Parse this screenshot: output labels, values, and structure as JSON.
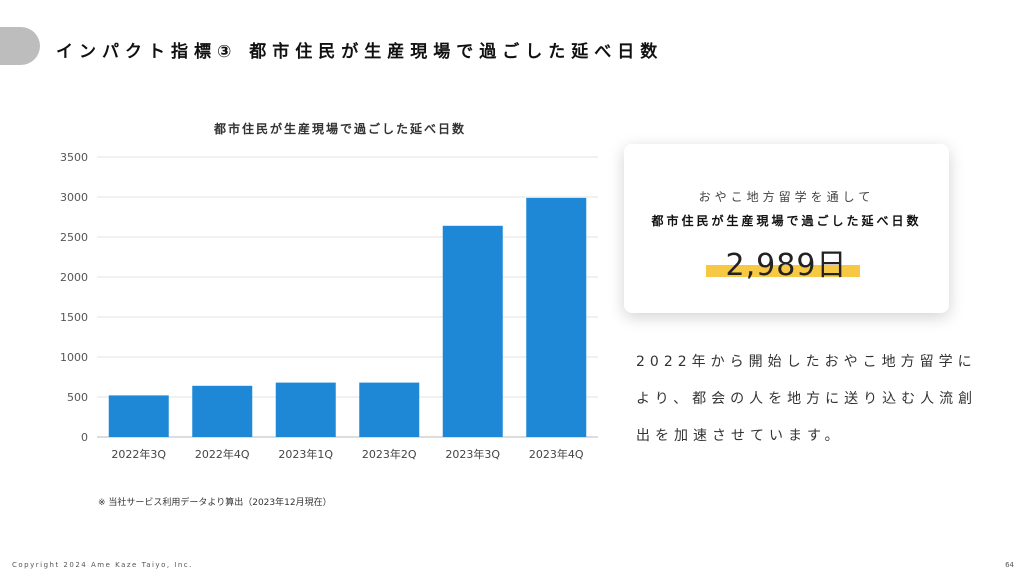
{
  "header": {
    "title": "インパクト指標③ 都市住民が生産現場で過ごした延べ日数"
  },
  "chart_data": {
    "type": "bar",
    "title": "都市住民が生産現場で過ごした延べ日数",
    "categories": [
      "2022年3Q",
      "2022年4Q",
      "2023年1Q",
      "2023年2Q",
      "2023年3Q",
      "2023年4Q"
    ],
    "values": [
      520,
      640,
      680,
      680,
      2640,
      2989
    ],
    "ylim": [
      0,
      3500
    ],
    "yticks": [
      0,
      500,
      1000,
      1500,
      2000,
      2500,
      3000,
      3500
    ],
    "grid": true,
    "bar_color": "#1e88d6"
  },
  "chart_note": "※ 当社サービス利用データより算出（2023年12月現在）",
  "summary_card": {
    "line1": "おやこ地方留学を通して",
    "line2": "都市住民が生産現場で過ごした延べ日数",
    "value": "2,989日",
    "highlight_color": "#f7c843"
  },
  "description": "2022年から開始したおやこ地方留学により、都会の人を地方に送り込む人流創出を加速させています。",
  "footer": {
    "copyright": "Copyright 2024 Ame Kaze Taiyo, Inc.",
    "page": "64"
  }
}
